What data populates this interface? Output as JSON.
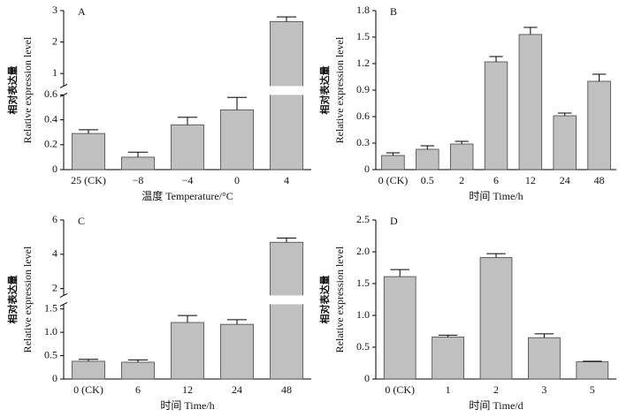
{
  "chart_data": [
    {
      "type": "bar",
      "panel": "A",
      "ylabel_zh": "相对表达量",
      "ylabel": "Relative expression level",
      "xlabel": "温度 Temperature/°C",
      "categories": [
        "25 (CK)",
        "−8",
        "−4",
        "0",
        "4"
      ],
      "values": [
        0.29,
        0.1,
        0.36,
        0.48,
        2.65
      ],
      "errors": [
        0.03,
        0.04,
        0.06,
        0.1,
        0.15
      ],
      "ylim": [
        0,
        3
      ],
      "ybreak": 0.6,
      "yticks": [
        0,
        0.2,
        0.4,
        0.6,
        1,
        2,
        3
      ],
      "color": "#c0c0c0"
    },
    {
      "type": "bar",
      "panel": "B",
      "ylabel_zh": "相对表达量",
      "ylabel": "Relative expression level",
      "xlabel": "时间 Time/h",
      "categories": [
        "0 (CK)",
        "0.5",
        "2",
        "6",
        "12",
        "24",
        "48"
      ],
      "values": [
        0.16,
        0.23,
        0.29,
        1.22,
        1.53,
        0.61,
        1.0
      ],
      "errors": [
        0.03,
        0.04,
        0.03,
        0.06,
        0.08,
        0.03,
        0.08
      ],
      "ylim": [
        0,
        1.8
      ],
      "yticks": [
        0,
        0.3,
        0.6,
        0.9,
        1.2,
        1.5,
        1.8
      ],
      "color": "#c0c0c0"
    },
    {
      "type": "bar",
      "panel": "C",
      "ylabel_zh": "相对表达量",
      "ylabel": "Relative expression level",
      "xlabel": "时间 Time/h",
      "categories": [
        "0 (CK)",
        "6",
        "12",
        "24",
        "48"
      ],
      "values": [
        0.38,
        0.36,
        1.21,
        1.17,
        4.7
      ],
      "errors": [
        0.04,
        0.05,
        0.15,
        0.1,
        0.25
      ],
      "ylim": [
        0,
        6
      ],
      "ybreak": 1.6,
      "yticks": [
        0,
        0.5,
        {
          "value": 1,
          "label": "1.0"
        },
        1.5,
        2,
        4,
        6
      ],
      "color": "#c0c0c0"
    },
    {
      "type": "bar",
      "panel": "D",
      "ylabel_zh": "相对表达量",
      "ylabel": "Relative expression level",
      "xlabel": "时间 Time/d",
      "categories": [
        "0 (CK)",
        "1",
        "2",
        "3",
        "5"
      ],
      "values": [
        1.61,
        0.66,
        1.91,
        0.65,
        0.27
      ],
      "errors": [
        0.11,
        0.03,
        0.06,
        0.06,
        0.01
      ],
      "ylim": [
        0,
        2.5
      ],
      "yticks": [
        0,
        0.5,
        {
          "value": 1,
          "label": "1.0"
        },
        1.5,
        {
          "value": 2,
          "label": "2.0"
        },
        2.5
      ],
      "color": "#c0c0c0"
    }
  ]
}
